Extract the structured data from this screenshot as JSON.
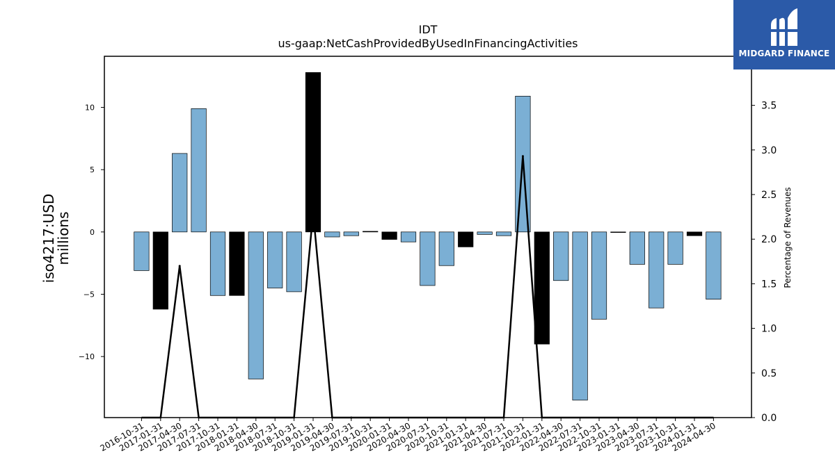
{
  "brand": {
    "name": "MIDGARD FINANCE",
    "bg_color": "#2b5aa8"
  },
  "chart_data": {
    "type": "bar",
    "title": "IDT",
    "subtitle": "us-gaap:NetCashProvidedByUsedInFinancingActivities",
    "ylabel": "iso4217:USD\nmillions",
    "ylabel_right": "Percentage of Revenues",
    "ylim": [
      -14.9,
      14.1
    ],
    "ylim_right": [
      0,
      4.05
    ],
    "yticks": [
      -10,
      -5,
      0,
      5,
      10
    ],
    "yticks_right": [
      0.0,
      0.5,
      1.0,
      1.5,
      2.0,
      2.5,
      3.0,
      3.5
    ],
    "categories": [
      "2016-10-31",
      "2017-01-31",
      "2017-04-30",
      "2017-07-31",
      "2017-10-31",
      "2018-01-31",
      "2018-04-30",
      "2018-07-31",
      "2018-10-31",
      "2019-01-31",
      "2019-04-30",
      "2019-07-31",
      "2019-10-31",
      "2020-01-31",
      "2020-04-30",
      "2020-07-31",
      "2020-10-31",
      "2021-01-31",
      "2021-04-30",
      "2021-07-31",
      "2021-10-31",
      "2022-01-31",
      "2022-04-30",
      "2022-07-31",
      "2022-10-31",
      "2023-01-31",
      "2023-04-30",
      "2023-07-31",
      "2023-10-31",
      "2024-01-31",
      "2024-04-30"
    ],
    "values": [
      -3.1,
      -6.2,
      6.3,
      9.9,
      -5.1,
      -5.1,
      -11.8,
      -4.5,
      -4.8,
      12.8,
      -0.4,
      -0.3,
      0.05,
      -0.6,
      -0.8,
      -4.3,
      -2.7,
      -1.2,
      -0.2,
      -0.3,
      10.9,
      -9.0,
      -3.9,
      -13.5,
      -7.0,
      0.0,
      -2.6,
      -6.1,
      -2.6,
      -0.3,
      -5.4
    ],
    "bar_colors": [
      "#7bafd4",
      "#000000",
      "#7bafd4",
      "#7bafd4",
      "#7bafd4",
      "#000000",
      "#7bafd4",
      "#7bafd4",
      "#7bafd4",
      "#000000",
      "#7bafd4",
      "#7bafd4",
      "#000000",
      "#000000",
      "#7bafd4",
      "#7bafd4",
      "#7bafd4",
      "#000000",
      "#7bafd4",
      "#7bafd4",
      "#7bafd4",
      "#000000",
      "#7bafd4",
      "#7bafd4",
      "#7bafd4",
      "#000000",
      "#7bafd4",
      "#7bafd4",
      "#7bafd4",
      "#000000",
      "#7bafd4"
    ],
    "line_series": {
      "values": [
        null,
        null,
        1.7,
        null,
        null,
        null,
        null,
        null,
        null,
        2.3,
        null,
        0.0,
        null,
        null,
        null,
        null,
        null,
        null,
        null,
        null,
        2.93,
        null,
        null,
        null,
        null,
        null,
        null,
        null,
        null,
        null,
        null
      ],
      "color": "#000000"
    },
    "grid": false
  }
}
